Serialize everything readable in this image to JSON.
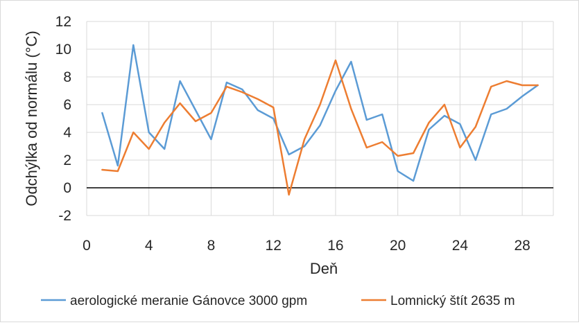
{
  "chart_data": {
    "type": "line",
    "title": "",
    "xlabel": "Deň",
    "ylabel": "Odchýlka od normálu (°C)",
    "xlim": [
      0,
      30
    ],
    "ylim": [
      -2,
      12
    ],
    "xticks": [
      0,
      4,
      8,
      12,
      16,
      20,
      24,
      28
    ],
    "yticks": [
      -2,
      0,
      2,
      4,
      6,
      8,
      10,
      12
    ],
    "grid": true,
    "legend": "bottom",
    "x": [
      1,
      2,
      3,
      4,
      5,
      6,
      7,
      8,
      9,
      10,
      11,
      12,
      13,
      14,
      15,
      16,
      17,
      18,
      19,
      20,
      21,
      22,
      23,
      24,
      25,
      26,
      27,
      28,
      29
    ],
    "series": [
      {
        "name": "aerologické meranie Gánovce 3000 gpm",
        "color": "#5b9bd5",
        "values": [
          5.4,
          1.6,
          10.3,
          4.0,
          2.8,
          7.7,
          5.6,
          3.5,
          7.6,
          7.1,
          5.6,
          5.0,
          2.4,
          3.0,
          4.5,
          7.0,
          9.1,
          4.9,
          5.3,
          1.2,
          0.5,
          4.2,
          5.2,
          4.6,
          2.0,
          5.3,
          5.7,
          6.6,
          7.4
        ]
      },
      {
        "name": "Lomnický štít  2635 m",
        "color": "#ed7d31",
        "values": [
          1.3,
          1.2,
          4.0,
          2.8,
          4.7,
          6.1,
          4.8,
          5.4,
          7.3,
          6.9,
          6.4,
          5.8,
          -0.5,
          3.5,
          6.0,
          9.2,
          5.7,
          2.9,
          3.3,
          2.3,
          2.5,
          4.7,
          6.0,
          2.9,
          4.4,
          7.3,
          7.7,
          7.4,
          7.4
        ]
      }
    ]
  }
}
